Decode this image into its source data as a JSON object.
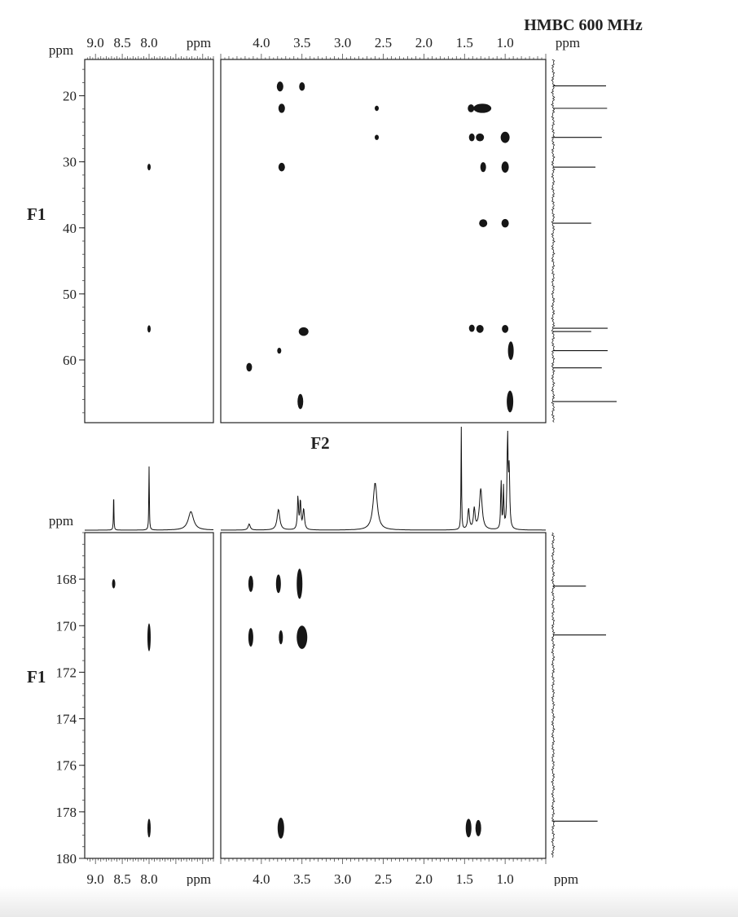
{
  "title": "HMBC 600 MHz",
  "unit_label": "ppm",
  "f1_label": "F1",
  "f2_label": "F2",
  "chart_data": [
    {
      "type": "scatter",
      "panel": "upper",
      "title": "HMBC 600 MHz",
      "xlabel": "F2",
      "ylabel": "F1",
      "x_unit": "ppm",
      "y_unit": "ppm",
      "x_segments": [
        {
          "name": "aromatic",
          "xlim": [
            9.2,
            6.8
          ],
          "ticks": [
            9.0,
            8.5,
            8.0
          ],
          "tick_labels": [
            "9.0",
            "8.5",
            "8.0"
          ]
        },
        {
          "name": "aliphatic",
          "xlim": [
            4.5,
            0.5
          ],
          "ticks": [
            4.0,
            3.5,
            3.0,
            2.5,
            2.0,
            1.5,
            1.0
          ],
          "tick_labels": [
            "4.0",
            "3.5",
            "3.0",
            "2.5",
            "2.0",
            "1.5",
            "1.0"
          ]
        }
      ],
      "ylim": [
        14.5,
        69.5
      ],
      "yticks": [
        20,
        30,
        40,
        50,
        60
      ],
      "ytick_labels": [
        "20",
        "30",
        "40",
        "50",
        "60"
      ],
      "points": [
        {
          "x": 8.0,
          "y": 30.8,
          "w": 0.04,
          "h": 1.0
        },
        {
          "x": 8.0,
          "y": 55.3,
          "w": 0.04,
          "h": 1.1
        },
        {
          "x": 3.77,
          "y": 18.6,
          "w": 0.08,
          "h": 1.5
        },
        {
          "x": 3.5,
          "y": 18.6,
          "w": 0.07,
          "h": 1.3
        },
        {
          "x": 3.75,
          "y": 21.9,
          "w": 0.08,
          "h": 1.4
        },
        {
          "x": 2.58,
          "y": 21.9,
          "w": 0.05,
          "h": 0.8
        },
        {
          "x": 1.42,
          "y": 21.9,
          "w": 0.08,
          "h": 1.2
        },
        {
          "x": 1.28,
          "y": 21.9,
          "w": 0.22,
          "h": 1.4
        },
        {
          "x": 2.58,
          "y": 26.3,
          "w": 0.05,
          "h": 0.8
        },
        {
          "x": 1.41,
          "y": 26.3,
          "w": 0.07,
          "h": 1.2
        },
        {
          "x": 1.31,
          "y": 26.3,
          "w": 0.1,
          "h": 1.2
        },
        {
          "x": 1.0,
          "y": 26.3,
          "w": 0.11,
          "h": 1.7
        },
        {
          "x": 3.75,
          "y": 30.8,
          "w": 0.08,
          "h": 1.3
        },
        {
          "x": 1.27,
          "y": 30.8,
          "w": 0.07,
          "h": 1.5
        },
        {
          "x": 1.0,
          "y": 30.8,
          "w": 0.09,
          "h": 1.7
        },
        {
          "x": 1.27,
          "y": 39.3,
          "w": 0.1,
          "h": 1.2
        },
        {
          "x": 1.0,
          "y": 39.3,
          "w": 0.09,
          "h": 1.3
        },
        {
          "x": 3.48,
          "y": 55.7,
          "w": 0.12,
          "h": 1.3
        },
        {
          "x": 1.41,
          "y": 55.2,
          "w": 0.07,
          "h": 1.1
        },
        {
          "x": 1.31,
          "y": 55.3,
          "w": 0.09,
          "h": 1.2
        },
        {
          "x": 1.0,
          "y": 55.3,
          "w": 0.08,
          "h": 1.2
        },
        {
          "x": 3.78,
          "y": 58.6,
          "w": 0.05,
          "h": 0.9
        },
        {
          "x": 0.93,
          "y": 58.6,
          "w": 0.07,
          "h": 2.8
        },
        {
          "x": 4.15,
          "y": 61.1,
          "w": 0.07,
          "h": 1.3
        },
        {
          "x": 3.52,
          "y": 66.3,
          "w": 0.07,
          "h": 2.3
        },
        {
          "x": 0.94,
          "y": 66.3,
          "w": 0.08,
          "h": 3.3
        }
      ],
      "f1_projection_peaks": [
        {
          "y": 18.5,
          "h": 1.0
        },
        {
          "y": 21.9,
          "h": 1.02
        },
        {
          "y": 26.3,
          "h": 0.92
        },
        {
          "y": 30.8,
          "h": 0.8
        },
        {
          "y": 39.3,
          "h": 0.72
        },
        {
          "y": 55.2,
          "h": 1.03
        },
        {
          "y": 55.7,
          "h": 0.72
        },
        {
          "y": 58.6,
          "h": 1.03
        },
        {
          "y": 61.2,
          "h": 0.92
        },
        {
          "y": 66.3,
          "h": 1.2
        }
      ]
    },
    {
      "type": "scatter",
      "panel": "lower",
      "xlabel": "F2",
      "ylabel": "F1",
      "x_unit": "ppm",
      "y_unit": "ppm",
      "x_segments": [
        {
          "name": "aromatic",
          "xlim": [
            9.2,
            6.8
          ],
          "ticks": [
            9.0,
            8.5,
            8.0
          ],
          "tick_labels": [
            "9.0",
            "8.5",
            "8.0"
          ]
        },
        {
          "name": "aliphatic",
          "xlim": [
            4.5,
            0.5
          ],
          "ticks": [
            4.0,
            3.5,
            3.0,
            2.5,
            2.0,
            1.5,
            1.0
          ],
          "tick_labels": [
            "4.0",
            "3.5",
            "3.0",
            "2.5",
            "2.0",
            "1.5",
            "1.0"
          ]
        }
      ],
      "ylim": [
        166.0,
        180.0
      ],
      "yticks": [
        168,
        170,
        172,
        174,
        176,
        178,
        180
      ],
      "ytick_labels": [
        "168",
        "170",
        "172",
        "174",
        "176",
        "178",
        "180"
      ],
      "points": [
        {
          "x": 8.66,
          "y": 168.2,
          "w": 0.03,
          "h": 0.4
        },
        {
          "x": 8.0,
          "y": 170.5,
          "w": 0.05,
          "h": 1.2
        },
        {
          "x": 8.0,
          "y": 178.7,
          "w": 0.04,
          "h": 0.8
        },
        {
          "x": 4.13,
          "y": 168.2,
          "w": 0.06,
          "h": 0.7
        },
        {
          "x": 3.79,
          "y": 168.2,
          "w": 0.06,
          "h": 0.8
        },
        {
          "x": 3.53,
          "y": 168.2,
          "w": 0.07,
          "h": 1.3
        },
        {
          "x": 4.13,
          "y": 170.5,
          "w": 0.06,
          "h": 0.8
        },
        {
          "x": 3.76,
          "y": 170.5,
          "w": 0.05,
          "h": 0.6
        },
        {
          "x": 3.5,
          "y": 170.5,
          "w": 0.13,
          "h": 1.0
        },
        {
          "x": 3.76,
          "y": 178.7,
          "w": 0.08,
          "h": 0.9
        },
        {
          "x": 1.45,
          "y": 178.7,
          "w": 0.07,
          "h": 0.8
        },
        {
          "x": 1.33,
          "y": 178.7,
          "w": 0.07,
          "h": 0.7
        }
      ],
      "f1_projection_peaks": [
        {
          "y": 168.3,
          "h": 0.62
        },
        {
          "y": 170.4,
          "h": 1.0
        },
        {
          "y": 178.4,
          "h": 0.84
        }
      ]
    },
    {
      "type": "line",
      "panel": "proton-1d-projection",
      "x_unit": "ppm",
      "peaks": [
        {
          "x": 8.66,
          "h": 0.32,
          "w": 0.006
        },
        {
          "x": 8.0,
          "h": 0.62,
          "w": 0.006
        },
        {
          "x": 7.22,
          "h": 0.18,
          "w": 0.06
        },
        {
          "x": 4.15,
          "h": 0.06,
          "w": 0.015
        },
        {
          "x": 3.79,
          "h": 0.2,
          "w": 0.02
        },
        {
          "x": 3.55,
          "h": 0.32,
          "w": 0.008
        },
        {
          "x": 3.52,
          "h": 0.28,
          "w": 0.008
        },
        {
          "x": 3.48,
          "h": 0.2,
          "w": 0.012
        },
        {
          "x": 2.6,
          "h": 0.46,
          "w": 0.03
        },
        {
          "x": 1.54,
          "h": 1.0,
          "w": 0.004
        },
        {
          "x": 1.45,
          "h": 0.2,
          "w": 0.012
        },
        {
          "x": 1.38,
          "h": 0.2,
          "w": 0.012
        },
        {
          "x": 1.3,
          "h": 0.4,
          "w": 0.02
        },
        {
          "x": 1.05,
          "h": 0.48,
          "w": 0.006
        },
        {
          "x": 1.02,
          "h": 0.4,
          "w": 0.006
        },
        {
          "x": 0.97,
          "h": 0.9,
          "w": 0.008
        },
        {
          "x": 0.95,
          "h": 0.55,
          "w": 0.008
        }
      ]
    }
  ]
}
